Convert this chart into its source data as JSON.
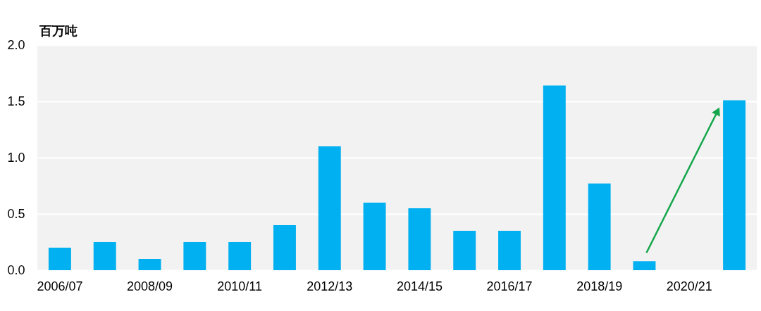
{
  "chart_data": {
    "type": "bar",
    "ylabel": "百万吨",
    "categories": [
      "2006/07",
      null,
      "2008/09",
      null,
      "2010/11",
      null,
      "2012/13",
      null,
      "2014/15",
      null,
      "2016/17",
      null,
      "2018/19",
      null,
      "2020/21",
      null
    ],
    "values": [
      0.2,
      0.25,
      0.1,
      0.25,
      0.25,
      0.4,
      1.1,
      0.6,
      0.55,
      0.35,
      0.35,
      1.64,
      0.77,
      0.08,
      null,
      1.51
    ],
    "color": "#00b0f0",
    "ylim": [
      0,
      2
    ],
    "yticks": [
      {
        "value": 0,
        "label": "0.0"
      },
      {
        "value": 0.5,
        "label": "0.5"
      },
      {
        "value": 1,
        "label": "1.0"
      },
      {
        "value": 1.5,
        "label": "1.5"
      },
      {
        "value": 2,
        "label": "2.0"
      }
    ],
    "grid": "y"
  }
}
